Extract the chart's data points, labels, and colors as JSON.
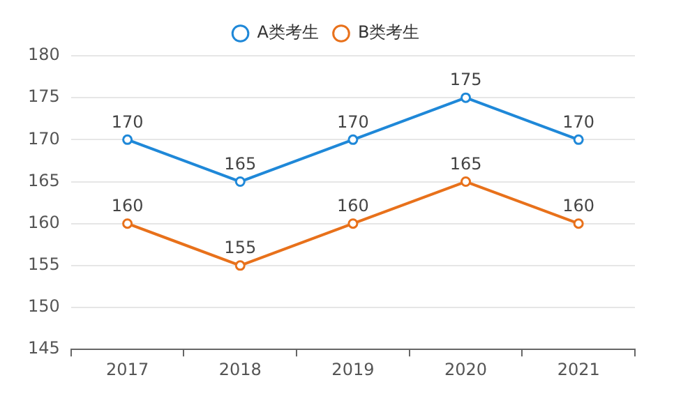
{
  "chart_data": {
    "type": "line",
    "categories": [
      "2017",
      "2018",
      "2019",
      "2020",
      "2021"
    ],
    "series": [
      {
        "name": "A类考生",
        "color": "#1f88d8",
        "values": [
          170,
          165,
          170,
          175,
          170
        ]
      },
      {
        "name": "B类考生",
        "color": "#e8711b",
        "values": [
          160,
          155,
          160,
          165,
          160
        ]
      }
    ],
    "ylim": [
      145,
      180
    ],
    "yticks": [
      145,
      150,
      155,
      160,
      165,
      170,
      175,
      180
    ],
    "grid": "y",
    "legend": "top",
    "marker": "circle",
    "data_labels": true
  }
}
